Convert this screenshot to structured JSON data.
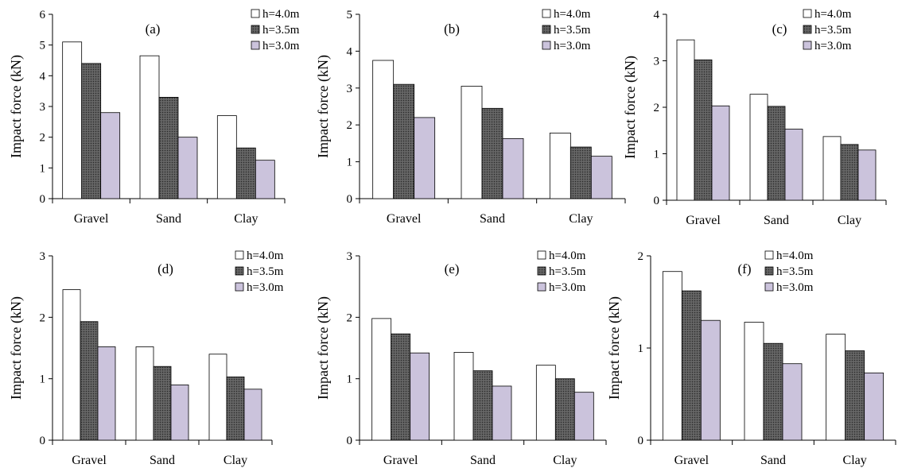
{
  "colors": {
    "h40": "#ffffff",
    "h35": "#4a4a4a",
    "h30": "#cbc3dc",
    "stroke": "#000000"
  },
  "chart_data": [
    {
      "type": "bar",
      "annotation": "(a)",
      "categories": [
        "Gravel",
        "Sand",
        "Clay"
      ],
      "ylabel": "Impact force (kN)",
      "ylim": [
        0,
        6
      ],
      "yticks": [
        "0",
        "1",
        "2",
        "3",
        "4",
        "5",
        "6"
      ],
      "series": [
        {
          "name": "h=4.0m",
          "values": [
            5.1,
            4.65,
            2.7
          ]
        },
        {
          "name": "h=3.5m",
          "values": [
            4.4,
            3.3,
            1.65
          ]
        },
        {
          "name": "h=3.0m",
          "values": [
            2.8,
            2.0,
            1.25
          ]
        }
      ]
    },
    {
      "type": "bar",
      "annotation": "(b)",
      "categories": [
        "Gravel",
        "Sand",
        "Clay"
      ],
      "ylabel": "Impact force (kN)",
      "ylim": [
        0,
        5
      ],
      "yticks": [
        "0",
        "1",
        "2",
        "3",
        "4",
        "5"
      ],
      "series": [
        {
          "name": "h=4.0m",
          "values": [
            3.75,
            3.05,
            1.78
          ]
        },
        {
          "name": "h=3.5m",
          "values": [
            3.1,
            2.45,
            1.4
          ]
        },
        {
          "name": "h=3.0m",
          "values": [
            2.2,
            1.63,
            1.15
          ]
        }
      ]
    },
    {
      "type": "bar",
      "annotation": "(c)",
      "categories": [
        "Gravel",
        "Sand",
        "Clay"
      ],
      "ylabel": "Impact force (kN)",
      "ylim": [
        0,
        4
      ],
      "yticks": [
        "0",
        "1",
        "2",
        "3",
        "4"
      ],
      "series": [
        {
          "name": "h=4.0m",
          "values": [
            3.45,
            2.28,
            1.37
          ]
        },
        {
          "name": "h=3.5m",
          "values": [
            3.02,
            2.02,
            1.2
          ]
        },
        {
          "name": "h=3.0m",
          "values": [
            2.03,
            1.53,
            1.08
          ]
        }
      ]
    },
    {
      "type": "bar",
      "annotation": "(d)",
      "categories": [
        "Gravel",
        "Sand",
        "Clay"
      ],
      "ylabel": "Impact force (kN)",
      "ylim": [
        0,
        3
      ],
      "yticks": [
        "0",
        "1",
        "2",
        "3"
      ],
      "series": [
        {
          "name": "h=4.0m",
          "values": [
            2.45,
            1.52,
            1.4
          ]
        },
        {
          "name": "h=3.5m",
          "values": [
            1.93,
            1.2,
            1.03
          ]
        },
        {
          "name": "h=3.0m",
          "values": [
            1.52,
            0.9,
            0.83
          ]
        }
      ]
    },
    {
      "type": "bar",
      "annotation": "(e)",
      "categories": [
        "Gravel",
        "Sand",
        "Clay"
      ],
      "ylabel": "Impact force (kN)",
      "ylim": [
        0,
        3
      ],
      "yticks": [
        "0",
        "1",
        "2",
        "3"
      ],
      "series": [
        {
          "name": "h=4.0m",
          "values": [
            1.98,
            1.43,
            1.22
          ]
        },
        {
          "name": "h=3.5m",
          "values": [
            1.73,
            1.13,
            1.0
          ]
        },
        {
          "name": "h=3.0m",
          "values": [
            1.42,
            0.88,
            0.78
          ]
        }
      ]
    },
    {
      "type": "bar",
      "annotation": "(f)",
      "categories": [
        "Gravel",
        "Sand",
        "Clay"
      ],
      "ylabel": "Impact force (kN)",
      "ylim": [
        0,
        2
      ],
      "yticks": [
        "0",
        "1",
        "2"
      ],
      "series": [
        {
          "name": "h=4.0m",
          "values": [
            1.83,
            1.28,
            1.15
          ]
        },
        {
          "name": "h=3.5m",
          "values": [
            1.62,
            1.05,
            0.97
          ]
        },
        {
          "name": "h=3.0m",
          "values": [
            1.3,
            0.83,
            0.73
          ]
        }
      ]
    }
  ]
}
